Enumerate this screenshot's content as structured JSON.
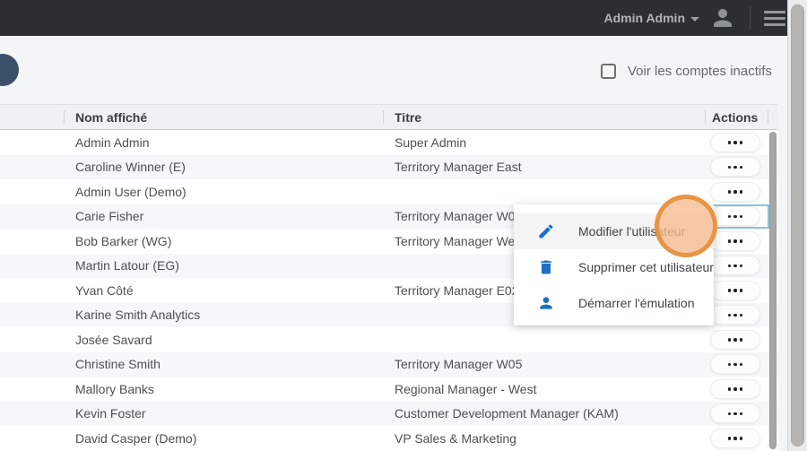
{
  "topbar": {
    "user_name": "Admin Admin"
  },
  "filters": {
    "show_inactive_label": "Voir les comptes inactifs",
    "checked": false
  },
  "table": {
    "headers": {
      "name": "Nom affiché",
      "title": "Titre",
      "actions": "Actions"
    },
    "rows": [
      {
        "name": "Admin Admin",
        "title": "Super Admin",
        "selected": false
      },
      {
        "name": "Caroline Winner (E)",
        "title": "Territory Manager East",
        "selected": false
      },
      {
        "name": "Admin User (Demo)",
        "title": "",
        "selected": false
      },
      {
        "name": "Carie Fisher",
        "title": "Territory Manager W01-",
        "selected": true
      },
      {
        "name": "Bob Barker (WG)",
        "title": "Territory Manager West-",
        "selected": false
      },
      {
        "name": "Martin Latour (EG)",
        "title": "",
        "selected": false
      },
      {
        "name": "Yvan Côté",
        "title": "Territory Manager E02-C",
        "selected": false
      },
      {
        "name": "Karine Smith Analytics",
        "title": "",
        "selected": false
      },
      {
        "name": "Josée Savard",
        "title": "",
        "selected": false
      },
      {
        "name": "Christine Smith",
        "title": "Territory Manager W05",
        "selected": false
      },
      {
        "name": "Mallory Banks",
        "title": "Regional Manager - West",
        "selected": false
      },
      {
        "name": "Kevin Foster",
        "title": "Customer Development Manager (KAM)",
        "selected": false
      },
      {
        "name": "David Casper (Demo)",
        "title": "VP Sales & Marketing",
        "selected": false
      }
    ]
  },
  "context_menu": {
    "items": [
      {
        "icon": "pencil-icon",
        "label": "Modifier l'utilisateur",
        "hover": true
      },
      {
        "icon": "trash-icon",
        "label": "Supprimer cet utilisateur",
        "hover": false
      },
      {
        "icon": "person-icon",
        "label": "Démarrer l'émulation",
        "hover": false
      }
    ]
  },
  "colors": {
    "topbar_bg": "#2b2e33",
    "accent_blue": "#1d6fc2",
    "selection_border": "#8ac2d9",
    "highlight_ring": "#e7903e",
    "highlight_fill": "#f6bd8f"
  }
}
